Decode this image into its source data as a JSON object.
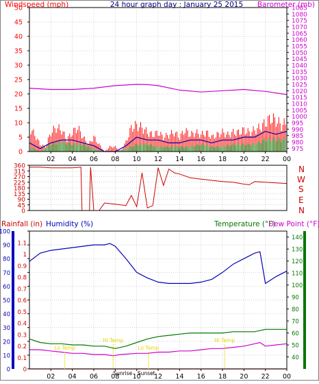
{
  "header": {
    "left_label": "Windspeed (mph)",
    "title": "24 hour graph day : January 25 2015",
    "right_label": "Barometer (mb)"
  },
  "compass_letters": [
    "N",
    "W",
    "S",
    "E",
    "N"
  ],
  "lower_header": {
    "rainfall_label": "Rainfall (in)",
    "humidity_label": "Humidity (%)",
    "temperature_label": "Temperature (°F)",
    "dewpoint_label": "Dew Point (°F)"
  },
  "annotations": {
    "sunrise": "Sunrise",
    "sunset": "Sunset",
    "highs": [
      {
        "label": "Hi Temp",
        "time": 7.8
      },
      {
        "label": "Hi Temp",
        "time": 18.2
      }
    ],
    "lows": [
      {
        "label": "Lo Temp",
        "time": 3.3
      },
      {
        "label": "Lo Temp",
        "time": 11.1
      }
    ],
    "sunrise_time": 8.7,
    "sunset_time": 10.9
  },
  "colors": {
    "wind": "#ff0000",
    "avg_wind": "#0000aa",
    "gust": "#008000",
    "barometer": "#cc00cc",
    "direction": "#cc0000",
    "humidity": "#0000bb",
    "temperature": "#007700",
    "dewpoint": "#cc00cc",
    "rainfall": "#cc0000",
    "annotation": "#e6d800",
    "grid": "#a0a0a0",
    "title": "#000080"
  },
  "chart_data": [
    {
      "type": "line",
      "name": "wind-barometer",
      "x_ticks": [
        "02",
        "04",
        "06",
        "08",
        "10",
        "12",
        "14",
        "16",
        "18",
        "20",
        "22",
        "00"
      ],
      "x_range": [
        0,
        24
      ],
      "left_axis": {
        "ticks": [
          0,
          5,
          10,
          15,
          20,
          25,
          30,
          35,
          40,
          45,
          50
        ],
        "range": [
          0,
          50
        ]
      },
      "right_axis": {
        "ticks": [
          975,
          980,
          985,
          990,
          995,
          1000,
          1005,
          1010,
          1015,
          1020,
          1025,
          1030,
          1035,
          1040,
          1045,
          1050,
          1055,
          1060,
          1065,
          1070,
          1075,
          1080,
          1085
        ],
        "range": [
          972.5,
          1085
        ]
      },
      "grid": true,
      "barometer": {
        "x": [
          0,
          2,
          4,
          6,
          8,
          10,
          11,
          12,
          14,
          16,
          18,
          20,
          22,
          24
        ],
        "y": [
          1022,
          1021,
          1021,
          1022,
          1024,
          1025,
          1024.8,
          1024,
          1020.5,
          1019,
          1020,
          1021,
          1019.5,
          1017
        ]
      },
      "wind_max": {
        "x": [
          0,
          0.5,
          1,
          1.5,
          2,
          2.5,
          3,
          3.5,
          4,
          4.5,
          5,
          5.5,
          6,
          6.5,
          7,
          7.5,
          8,
          8.5,
          9,
          9.5,
          10,
          10.5,
          11,
          11.5,
          12,
          12.5,
          13,
          13.5,
          14,
          14.5,
          15,
          15.5,
          16,
          16.5,
          17,
          17.5,
          18,
          18.5,
          19,
          19.5,
          20,
          20.5,
          21,
          21.5,
          22,
          22.5,
          23,
          23.5,
          24
        ],
        "y": [
          10,
          7,
          3,
          2,
          8,
          10,
          9,
          5,
          8,
          10,
          6,
          3,
          6,
          3,
          0,
          2,
          2,
          0,
          4,
          10,
          11,
          10,
          8,
          7,
          8,
          6,
          7,
          8,
          6,
          9,
          7,
          8,
          7,
          8,
          6,
          7,
          8,
          7,
          8,
          8,
          9,
          8,
          9,
          10,
          12,
          14,
          13,
          11,
          12
        ]
      },
      "wind_avg": {
        "x": [
          0,
          1,
          2,
          3,
          4,
          5,
          6,
          7,
          8,
          9,
          10,
          11,
          12,
          13,
          14,
          15,
          16,
          17,
          18,
          19,
          20,
          21,
          22,
          23,
          24
        ],
        "y": [
          3,
          1,
          3,
          4,
          4,
          3,
          2,
          0,
          0,
          2,
          5,
          4,
          4,
          3,
          3,
          4,
          4,
          3,
          4,
          4,
          5,
          5,
          7,
          6,
          7
        ]
      },
      "wind_gust": {
        "x": [
          0,
          1,
          2,
          3,
          4,
          5,
          6,
          7,
          8,
          9,
          10,
          11,
          12,
          13,
          14,
          15,
          16,
          17,
          18,
          19,
          20,
          21,
          22,
          23,
          24
        ],
        "y": [
          2,
          0,
          3,
          4,
          3,
          3,
          1,
          0,
          0,
          1,
          3,
          3,
          2,
          2,
          2,
          2,
          3,
          2,
          2,
          3,
          3,
          3,
          5,
          5,
          5
        ]
      }
    },
    {
      "type": "line",
      "name": "wind-direction",
      "x_range": [
        0,
        24
      ],
      "y_range": [
        0,
        360
      ],
      "y_ticks": [
        0,
        45,
        90,
        135,
        180,
        225,
        270,
        315,
        360
      ],
      "grid": true,
      "x": [
        0,
        1,
        2,
        3,
        4,
        4.8,
        4.9,
        5.6,
        5.7,
        6,
        6.5,
        7,
        8,
        9,
        9.5,
        10,
        10.5,
        11,
        11.5,
        12,
        12.5,
        13,
        13.5,
        14,
        15,
        16,
        17,
        18,
        19,
        20,
        20.5,
        21,
        22,
        23,
        24
      ],
      "y": [
        345,
        345,
        340,
        340,
        340,
        345,
        0,
        0,
        345,
        0,
        0,
        60,
        50,
        40,
        120,
        30,
        300,
        20,
        40,
        340,
        200,
        330,
        300,
        290,
        260,
        250,
        240,
        230,
        225,
        210,
        205,
        230,
        225,
        220,
        215
      ]
    },
    {
      "type": "line",
      "name": "humidity-temperature",
      "x_ticks": [
        "02",
        "04",
        "06",
        "08",
        "10",
        "12",
        "14",
        "16",
        "18",
        "20",
        "22",
        "00"
      ],
      "x_range": [
        0,
        24
      ],
      "humidity_axis": {
        "ticks": [
          0,
          10,
          20,
          30,
          40,
          50,
          60,
          70,
          80,
          90,
          100
        ],
        "range": [
          0,
          100
        ]
      },
      "rainfall_axis": {
        "ticks": [
          0,
          0.1,
          0.2,
          0.3,
          0.4,
          0.5,
          0.6,
          0.7,
          0.8,
          0.9,
          1,
          1.1
        ],
        "range": [
          0,
          1.2
        ]
      },
      "temperature_axis": {
        "ticks": [
          40,
          50,
          60,
          70,
          80,
          90,
          100,
          110,
          120,
          130,
          140
        ],
        "range": [
          30,
          145
        ]
      },
      "grid": true,
      "humidity": {
        "x": [
          0,
          1,
          2,
          3,
          4,
          5,
          6,
          7,
          7.5,
          8,
          9,
          10,
          11,
          12,
          13,
          14,
          15,
          16,
          17,
          18,
          19,
          20,
          21,
          21.5,
          22,
          23,
          24
        ],
        "y": [
          78,
          84,
          86,
          87,
          88,
          89,
          90,
          90,
          91,
          89,
          80,
          70,
          66,
          63,
          62,
          62,
          62,
          63,
          65,
          70,
          76,
          80,
          84,
          85,
          62,
          67,
          71
        ]
      },
      "temperature": {
        "x": [
          0,
          1,
          2,
          3,
          4,
          5,
          6,
          7,
          8,
          9,
          10,
          11,
          12,
          13,
          14,
          15,
          16,
          17,
          18,
          19,
          20,
          21,
          22,
          23,
          24
        ],
        "y": [
          55,
          52,
          51,
          51,
          50,
          50,
          49,
          49,
          47,
          49,
          52,
          55,
          57,
          58,
          59,
          60,
          60,
          60,
          60,
          61,
          61,
          61,
          63,
          63,
          63
        ]
      },
      "dewpoint": {
        "x": [
          0,
          1,
          2,
          3,
          4,
          5,
          6,
          7,
          7.8,
          8.5,
          10,
          11,
          12,
          13,
          14,
          15,
          16,
          17,
          18,
          19,
          20,
          21,
          21.5,
          22,
          23,
          24
        ],
        "y": [
          46,
          46,
          45,
          44,
          43,
          43,
          42,
          42,
          41,
          42,
          43,
          43,
          44,
          44,
          45,
          45,
          46,
          47,
          47,
          48,
          49,
          51,
          52,
          49,
          50,
          51
        ]
      },
      "rainfall": {
        "x": [
          0,
          24
        ],
        "y": [
          0,
          0
        ]
      }
    }
  ]
}
